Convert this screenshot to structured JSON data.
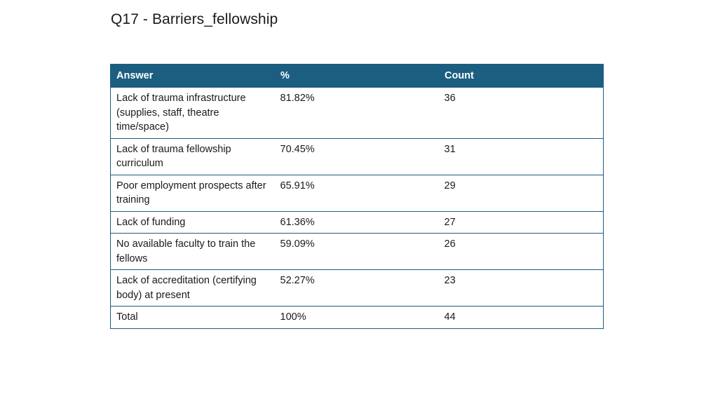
{
  "title": "Q17 - Barriers_fellowship",
  "colors": {
    "header_bg": "#1b5e80",
    "header_text": "#ffffff",
    "border": "#1b5e80"
  },
  "table": {
    "headers": [
      "Answer",
      "%",
      "Count"
    ],
    "rows": [
      {
        "answer": "Lack of trauma infrastructure (supplies, staff, theatre time/space)",
        "percent": "81.82%",
        "count": "36"
      },
      {
        "answer": "Lack of trauma fellowship curriculum",
        "percent": "70.45%",
        "count": "31"
      },
      {
        "answer": "Poor employment prospects after training",
        "percent": "65.91%",
        "count": "29"
      },
      {
        "answer": "Lack of funding",
        "percent": "61.36%",
        "count": "27"
      },
      {
        "answer": "No available faculty to train the fellows",
        "percent": "59.09%",
        "count": "26"
      },
      {
        "answer": "Lack of accreditation (certifying body) at present",
        "percent": "52.27%",
        "count": "23"
      },
      {
        "answer": "Total",
        "percent": "100%",
        "count": "44"
      }
    ]
  }
}
